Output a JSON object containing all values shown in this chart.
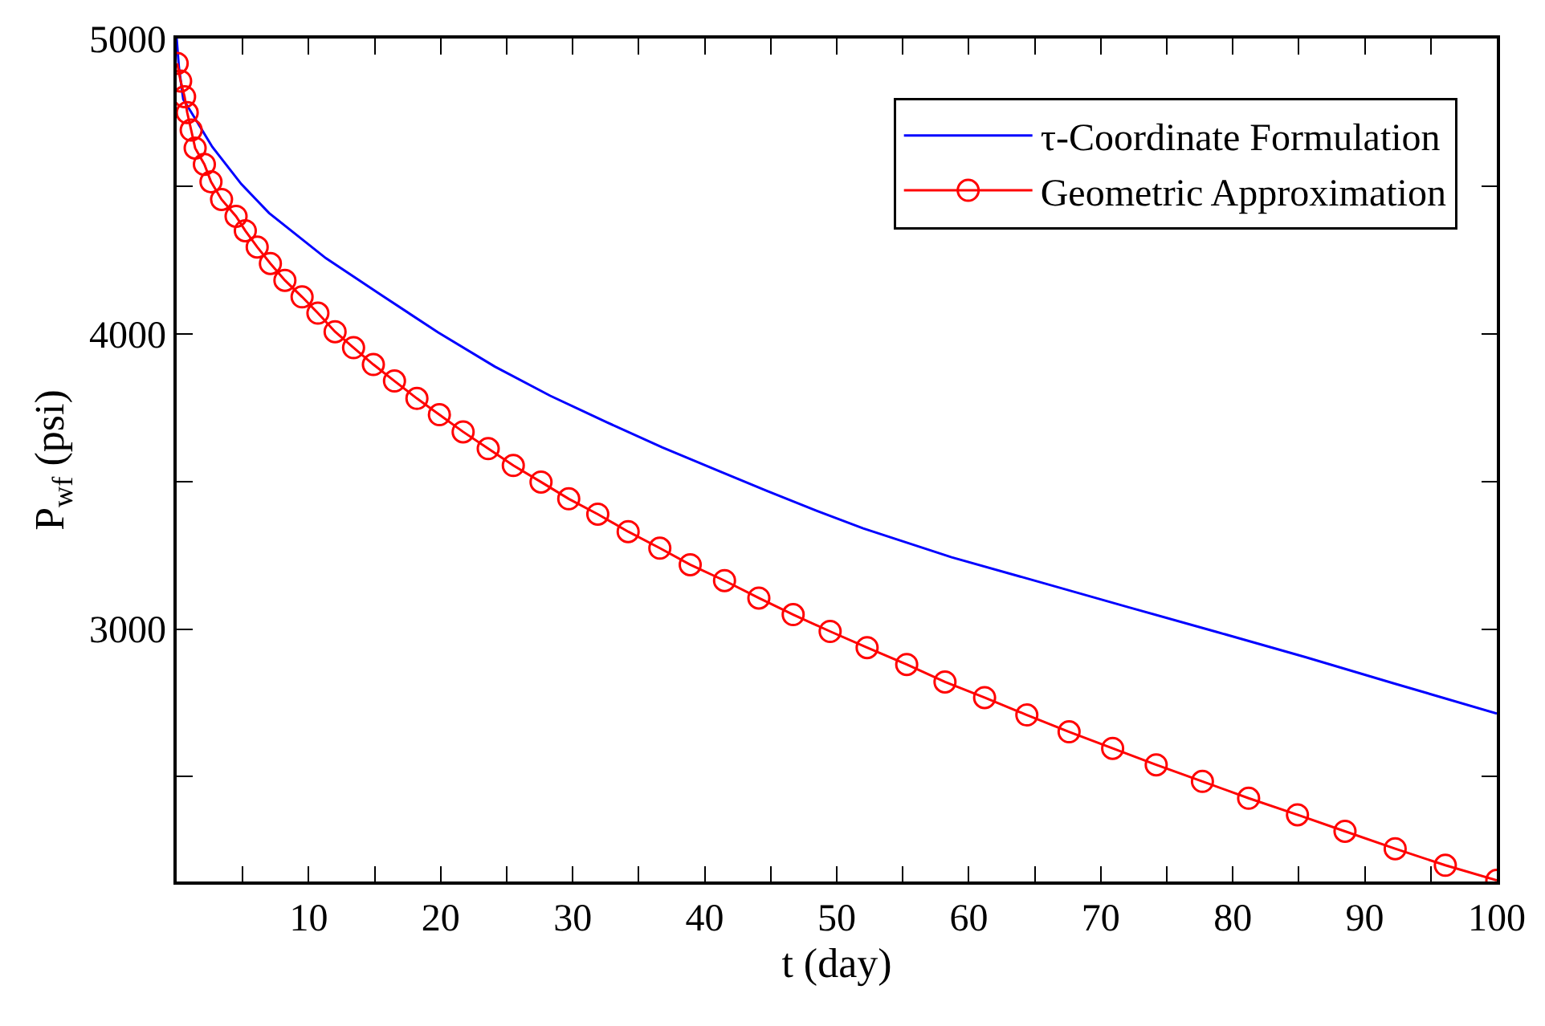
{
  "chart_data": {
    "type": "line",
    "xlabel": "t (day)",
    "ylabel": "P$_{wf}$ (psi)",
    "xlim": [
      0,
      100
    ],
    "ylim": [
      2145,
      5000
    ],
    "xticks": [
      {
        "value": 5,
        "label": null
      },
      10,
      {
        "value": 15,
        "label": null
      },
      20,
      {
        "value": 25,
        "label": null
      },
      30,
      {
        "value": 35,
        "label": null
      },
      40,
      {
        "value": 45,
        "label": null
      },
      50,
      {
        "value": 55,
        "label": null
      },
      60,
      {
        "value": 65,
        "label": null
      },
      70,
      {
        "value": 75,
        "label": null
      },
      80,
      {
        "value": 85,
        "label": null
      },
      90,
      {
        "value": 95,
        "label": null
      },
      100
    ],
    "yticks": [
      {
        "value": 2500,
        "label": null
      },
      3000,
      {
        "value": 3500,
        "label": null
      },
      4000,
      {
        "value": 4500,
        "label": null
      },
      5000
    ],
    "legend": "top right",
    "line_style": "solid",
    "series": [
      {
        "name": "τ-Coordinate Formulation",
        "color": "#0000ff",
        "marker": "none",
        "x": [
          0,
          0.17,
          0.5,
          1.0,
          2.7,
          4.9,
          7.0,
          11.3,
          15.5,
          19.8,
          24.1,
          28.3,
          32.6,
          36.8,
          41.1,
          44.7,
          48.5,
          52.0,
          58.7,
          65.4,
          72.1,
          78.8,
          85.5,
          92.2,
          100
        ],
        "values": [
          5000,
          4902,
          4794,
          4758,
          4633,
          4507,
          4409,
          4256,
          4131,
          4005,
          3889,
          3790,
          3700,
          3615,
          3535,
          3468,
          3400,
          3341,
          3243,
          3159,
          3074,
          2990,
          2905,
          2816,
          2714
        ]
      },
      {
        "name": "Geometric Approximation",
        "color": "#ff0000",
        "marker": "circle",
        "x": [
          0.04,
          0.3,
          0.6,
          0.8,
          1.1,
          1.4,
          2.1,
          2.6,
          3.4,
          4.5,
          5.2,
          6.1,
          7.1,
          8.2,
          9.5,
          10.7,
          12.0,
          13.4,
          14.9,
          16.5,
          18.2,
          19.9,
          21.7,
          23.6,
          25.5,
          27.6,
          29.7,
          31.9,
          34.2,
          36.6,
          38.9,
          41.5,
          44.1,
          46.7,
          49.5,
          52.3,
          55.3,
          58.2,
          61.2,
          64.4,
          67.6,
          70.9,
          74.2,
          77.7,
          81.2,
          84.9,
          88.5,
          92.3,
          96.1,
          100
        ],
        "values": [
          4916,
          4856,
          4803,
          4749,
          4690,
          4629,
          4574,
          4515,
          4455,
          4398,
          4349,
          4294,
          4238,
          4181,
          4125,
          4070,
          4007,
          3953,
          3896,
          3840,
          3781,
          3726,
          3668,
          3611,
          3554,
          3498,
          3441,
          3389,
          3330,
          3274,
          3218,
          3164,
          3105,
          3049,
          2992,
          2937,
          2880,
          2821,
          2768,
          2709,
          2652,
          2596,
          2540,
          2484,
          2427,
          2371,
          2315,
          2256,
          2200,
          2149
        ]
      }
    ]
  }
}
